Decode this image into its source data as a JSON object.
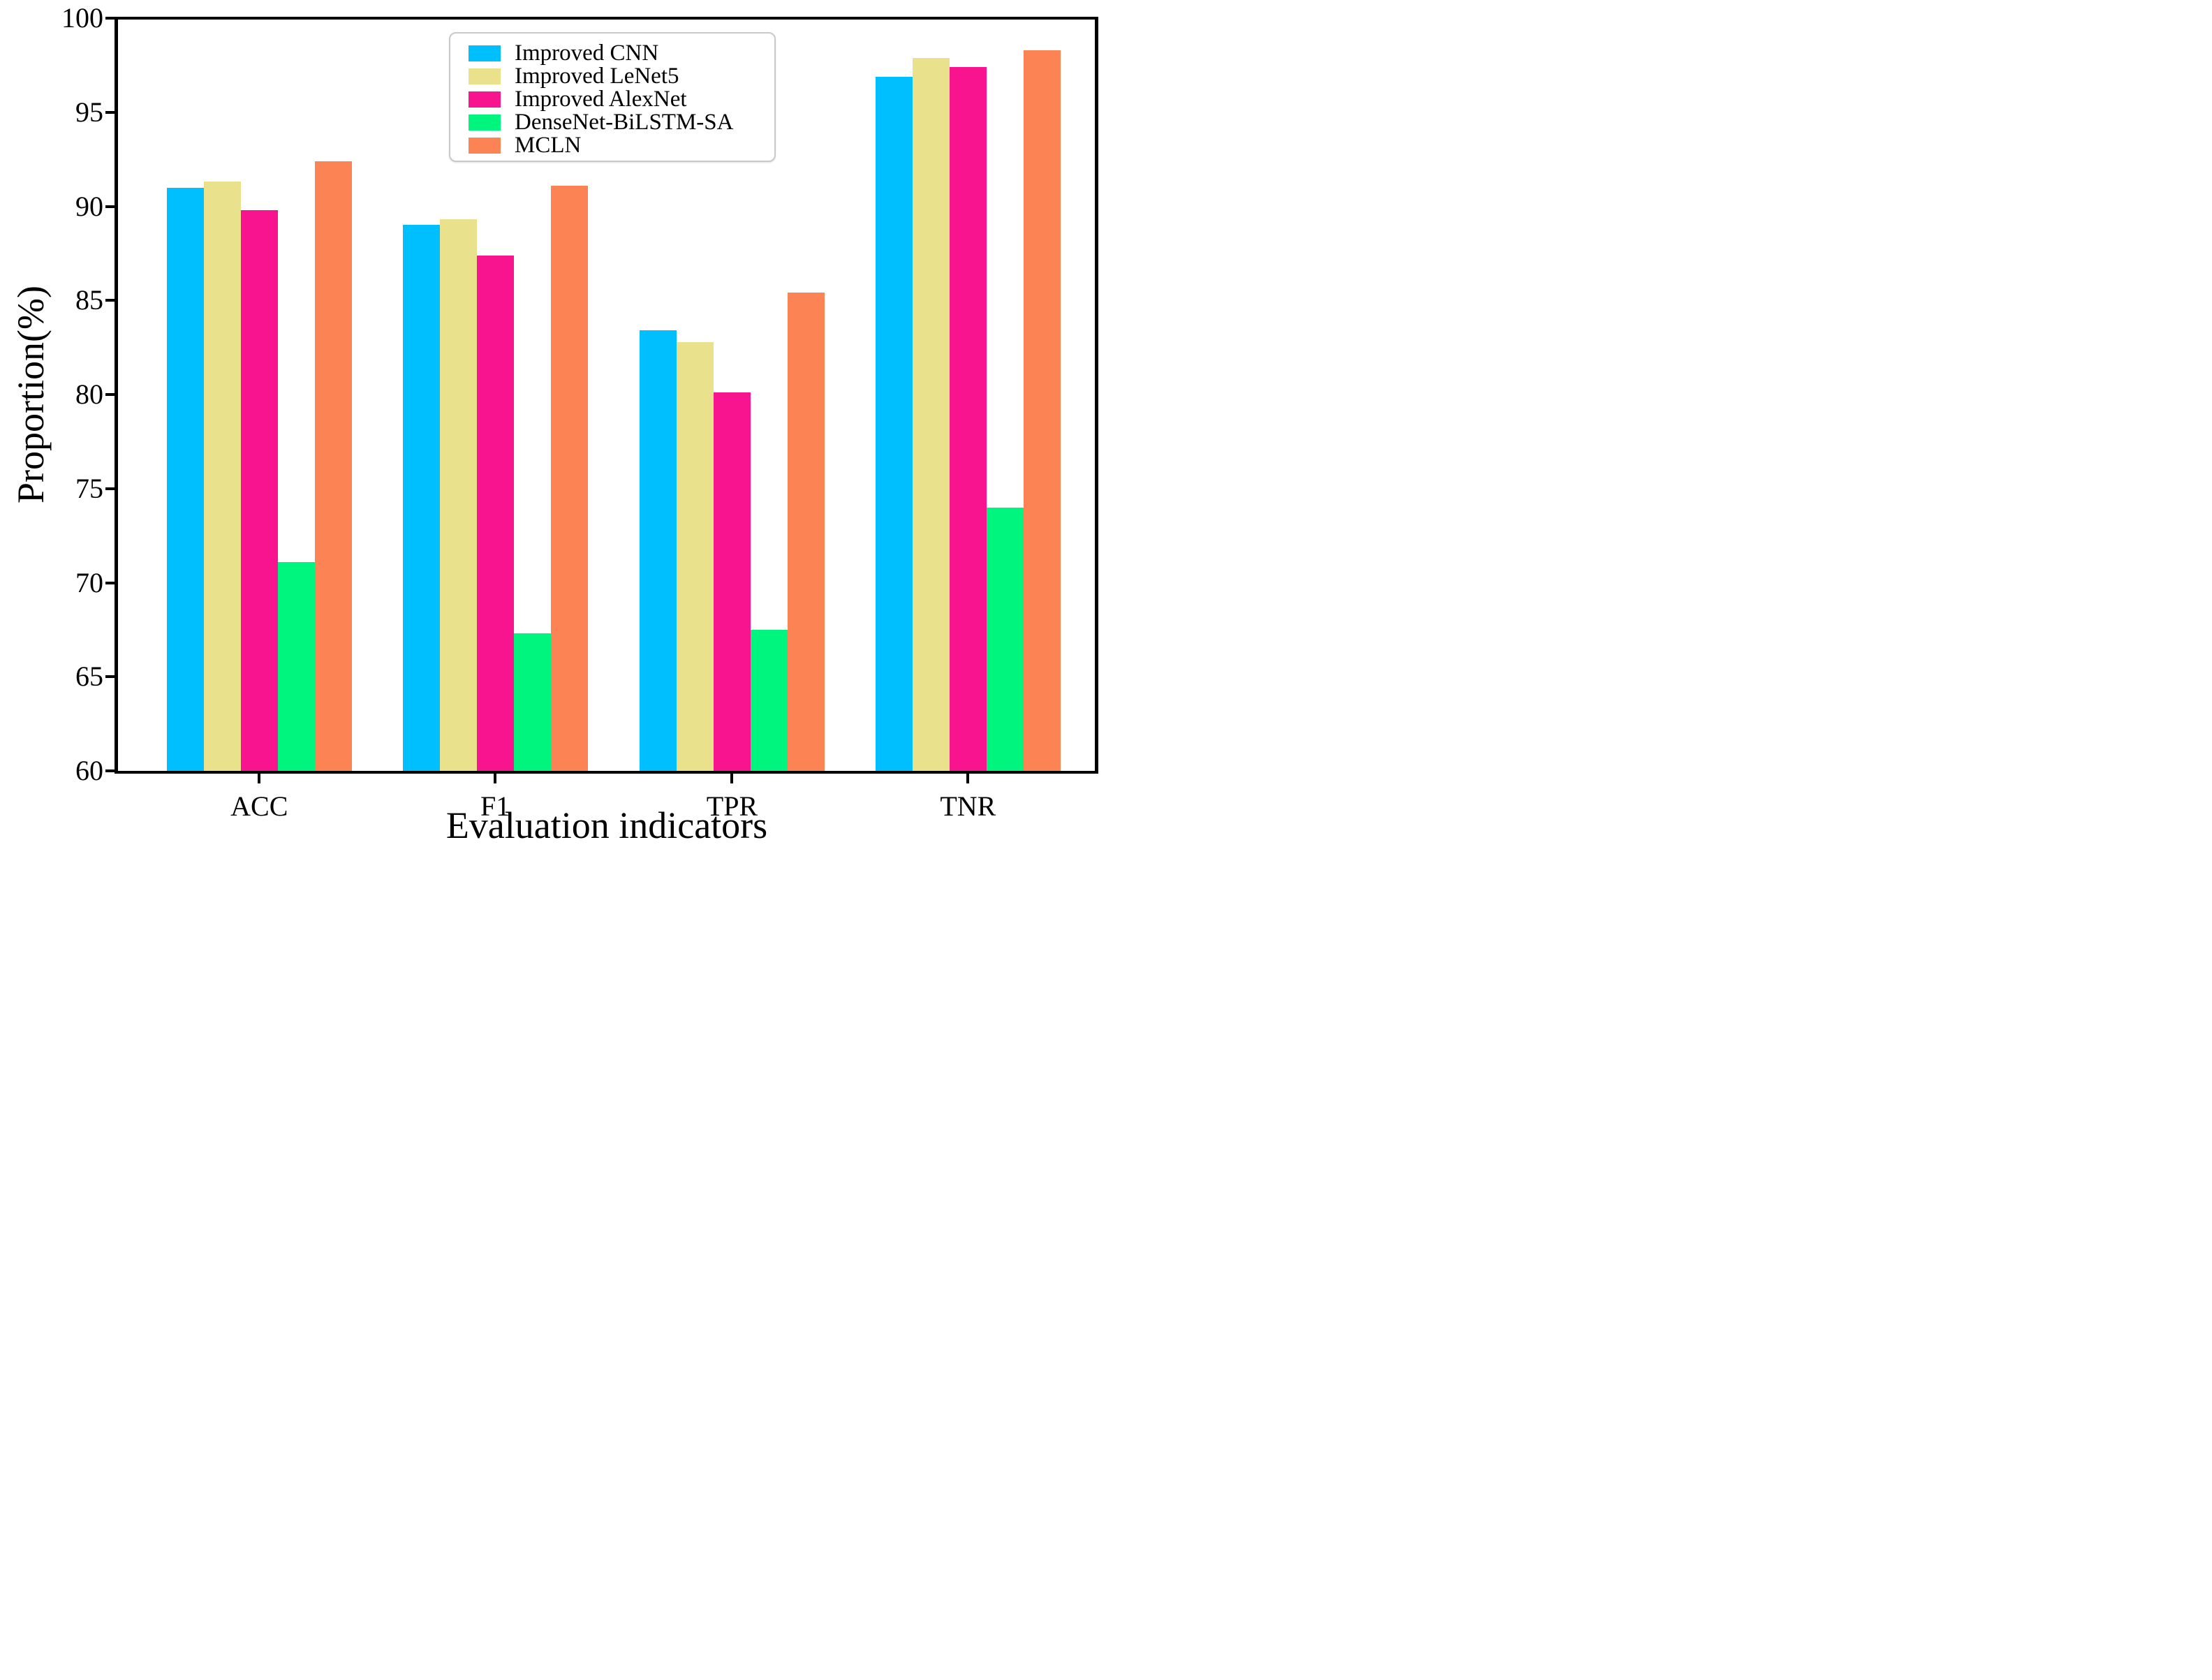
{
  "figure": {
    "background": "#ffffff"
  },
  "chart_data": {
    "type": "bar",
    "title": "",
    "xlabel": "Evaluation indicators",
    "ylabel": "Proportion(%)",
    "categories": [
      "ACC",
      "F1",
      "TPR",
      "TNR"
    ],
    "series": [
      {
        "name": "Improved CNN",
        "color": "#00BFFF",
        "values": [
          91.0,
          89.0,
          83.4,
          96.9
        ]
      },
      {
        "name": "Improved LeNet5",
        "color": "#EAE18D",
        "values": [
          91.3,
          89.3,
          82.8,
          97.9
        ]
      },
      {
        "name": "Improved AlexNet",
        "color": "#F8148E",
        "values": [
          89.8,
          87.4,
          80.1,
          97.4
        ]
      },
      {
        "name": "DenseNet-BiLSTM-SA",
        "color": "#00F57F",
        "values": [
          71.1,
          67.3,
          67.5,
          74.0
        ]
      },
      {
        "name": "MCLN",
        "color": "#FC8454",
        "values": [
          92.4,
          91.1,
          85.4,
          98.3
        ]
      }
    ],
    "ylim": [
      60,
      100
    ],
    "yticks": [
      60,
      65,
      70,
      75,
      80,
      85,
      90,
      95,
      100
    ],
    "grid": false,
    "legend_position": "upper center"
  }
}
